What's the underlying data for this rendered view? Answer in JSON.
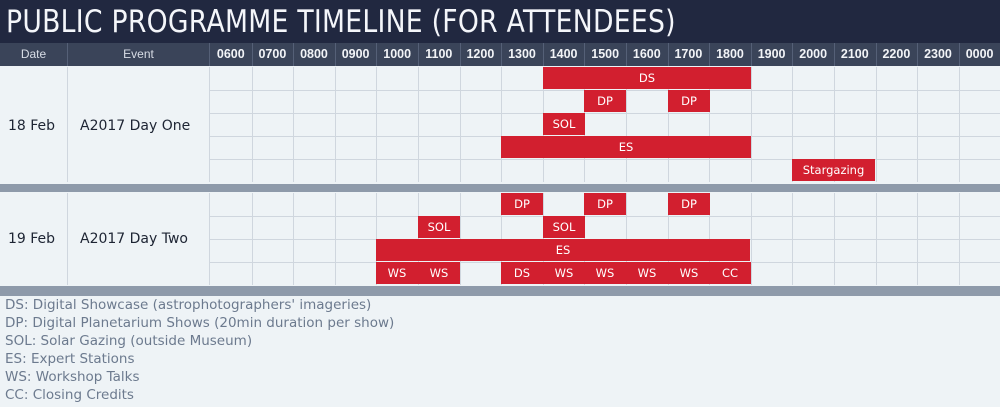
{
  "title": "PUBLIC PROGRAMME TIMELINE (FOR ATTENDEES)",
  "colors": {
    "title_bg": "#212840",
    "header_bg": "#3a4459",
    "event_bar": "#d21f2f",
    "divider": "#8e9aaa",
    "legend_text": "#6c7a8e"
  },
  "header": {
    "date": "Date",
    "event": "Event",
    "hours": [
      "0600",
      "0700",
      "0800",
      "0900",
      "1000",
      "1100",
      "1200",
      "1300",
      "1400",
      "1500",
      "1600",
      "1700",
      "1800",
      "1900",
      "2000",
      "2100",
      "2200",
      "2300",
      "0000"
    ]
  },
  "days": [
    {
      "date": "18 Feb",
      "event": "A2017 Day One",
      "rows": [
        [
          {
            "label": "DS",
            "start": "1400",
            "end": "1900"
          }
        ],
        [
          {
            "label": "DP",
            "start": "1500",
            "end": "1600"
          },
          {
            "label": "DP",
            "start": "1700",
            "end": "1800"
          }
        ],
        [
          {
            "label": "SOL",
            "start": "1400",
            "end": "1500"
          }
        ],
        [
          {
            "label": "ES",
            "start": "1300",
            "end": "1900"
          }
        ],
        [
          {
            "label": "Stargazing",
            "start": "2000",
            "end": "2200"
          }
        ]
      ]
    },
    {
      "date": "19 Feb",
      "event": "A2017 Day Two",
      "rows": [
        [
          {
            "label": "DP",
            "start": "1300",
            "end": "1400"
          },
          {
            "label": "DP",
            "start": "1500",
            "end": "1600"
          },
          {
            "label": "DP",
            "start": "1700",
            "end": "1800"
          }
        ],
        [
          {
            "label": "SOL",
            "start": "1100",
            "end": "1200"
          },
          {
            "label": "SOL",
            "start": "1400",
            "end": "1500"
          }
        ],
        [
          {
            "label": "ES",
            "start": "1000",
            "end": "1900"
          }
        ],
        [
          {
            "label": "WS",
            "start": "1000",
            "end": "1100"
          },
          {
            "label": "WS",
            "start": "1100",
            "end": "1200"
          },
          {
            "label": "DS",
            "start": "1300",
            "end": "1400"
          },
          {
            "label": "WS",
            "start": "1400",
            "end": "1500"
          },
          {
            "label": "WS",
            "start": "1500",
            "end": "1600"
          },
          {
            "label": "WS",
            "start": "1600",
            "end": "1700"
          },
          {
            "label": "WS",
            "start": "1700",
            "end": "1800"
          },
          {
            "label": "CC",
            "start": "1800",
            "end": "1900"
          }
        ]
      ]
    }
  ],
  "legend": [
    "DS: Digital Showcase (astrophotographers' imageries)",
    "DP: Digital Planetarium Shows (20min duration per show)",
    "SOL: Solar Gazing (outside Museum)",
    "ES: Expert Stations",
    "WS: Workshop Talks",
    "CC: Closing Credits"
  ]
}
